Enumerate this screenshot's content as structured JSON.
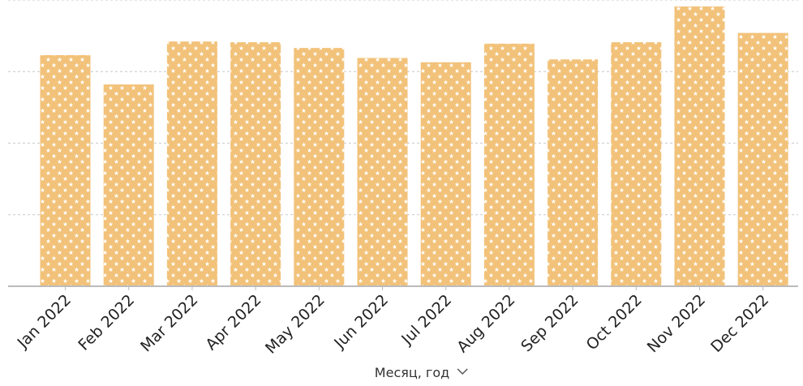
{
  "chart_data": {
    "type": "bar",
    "title": "",
    "xlabel": "Месяц, год",
    "ylabel": "",
    "categories": [
      "Jan 2022",
      "Feb 2022",
      "Mar 2022",
      "Apr 2022",
      "May 2022",
      "Jun 2022",
      "Jul 2022",
      "Aug 2022",
      "Sep 2022",
      "Oct 2022",
      "Nov 2022",
      "Dec 2022"
    ],
    "values": [
      3.23,
      2.82,
      3.42,
      3.41,
      3.33,
      3.19,
      3.13,
      3.39,
      3.17,
      3.41,
      3.91,
      3.54
    ],
    "ylim": [
      0,
      4
    ],
    "grid": "horizontal-dashed",
    "legend": "none",
    "colors": {
      "bar": "#f2c27a",
      "pattern": "#ffffff",
      "grid": "#c8c8c8",
      "axis": "#bbbbbb"
    },
    "xlabel_icon": "chevron-down-icon"
  }
}
